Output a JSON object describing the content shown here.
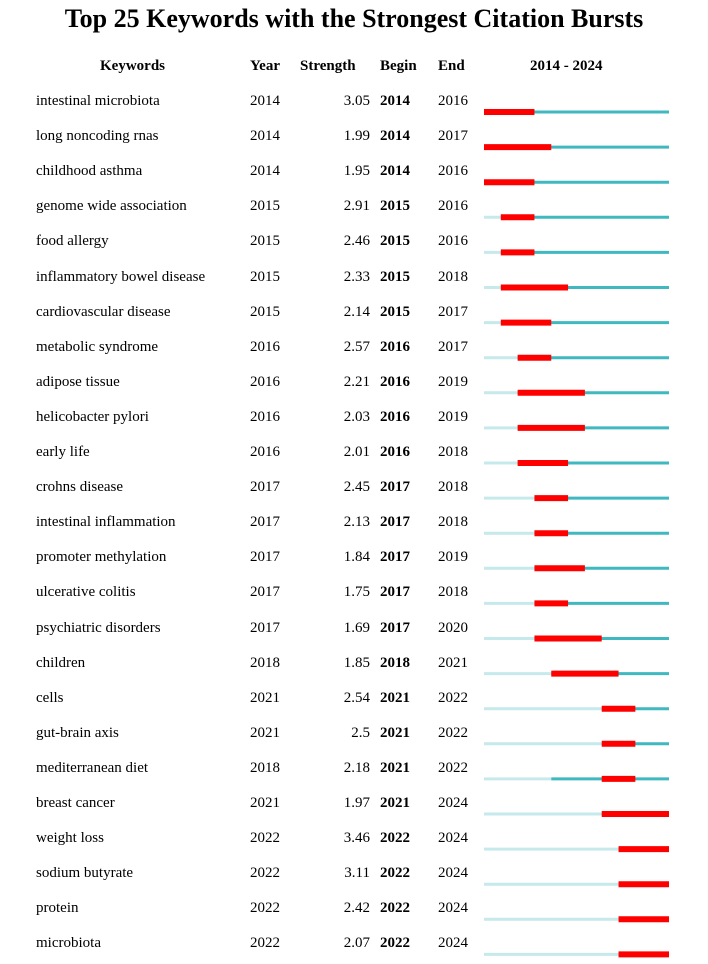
{
  "title": "Top 25 Keywords with the Strongest Citation Bursts",
  "headers": {
    "keywords": "Keywords",
    "year": "Year",
    "strength": "Strength",
    "begin": "Begin",
    "end": "End",
    "range": "2014 - 2024"
  },
  "chart_data": {
    "type": "table",
    "timeline": {
      "start": 2014,
      "end": 2024
    },
    "colors": {
      "burst": "#ff0000",
      "active": "#3fb8c0",
      "inactive": "#c6e9ec"
    },
    "rows": [
      {
        "keyword": "intestinal microbiota",
        "year": 2014,
        "strength": "3.05",
        "begin": 2014,
        "end": 2016
      },
      {
        "keyword": "long noncoding rnas",
        "year": 2014,
        "strength": "1.99",
        "begin": 2014,
        "end": 2017
      },
      {
        "keyword": "childhood asthma",
        "year": 2014,
        "strength": "1.95",
        "begin": 2014,
        "end": 2016
      },
      {
        "keyword": "genome wide association",
        "year": 2015,
        "strength": "2.91",
        "begin": 2015,
        "end": 2016
      },
      {
        "keyword": "food allergy",
        "year": 2015,
        "strength": "2.46",
        "begin": 2015,
        "end": 2016
      },
      {
        "keyword": "inflammatory bowel disease",
        "year": 2015,
        "strength": "2.33",
        "begin": 2015,
        "end": 2018
      },
      {
        "keyword": "cardiovascular disease",
        "year": 2015,
        "strength": "2.14",
        "begin": 2015,
        "end": 2017
      },
      {
        "keyword": "metabolic syndrome",
        "year": 2016,
        "strength": "2.57",
        "begin": 2016,
        "end": 2017
      },
      {
        "keyword": "adipose tissue",
        "year": 2016,
        "strength": "2.21",
        "begin": 2016,
        "end": 2019
      },
      {
        "keyword": "helicobacter pylori",
        "year": 2016,
        "strength": "2.03",
        "begin": 2016,
        "end": 2019
      },
      {
        "keyword": "early life",
        "year": 2016,
        "strength": "2.01",
        "begin": 2016,
        "end": 2018
      },
      {
        "keyword": "crohns disease",
        "year": 2017,
        "strength": "2.45",
        "begin": 2017,
        "end": 2018
      },
      {
        "keyword": "intestinal inflammation",
        "year": 2017,
        "strength": "2.13",
        "begin": 2017,
        "end": 2018
      },
      {
        "keyword": "promoter methylation",
        "year": 2017,
        "strength": "1.84",
        "begin": 2017,
        "end": 2019
      },
      {
        "keyword": "ulcerative colitis",
        "year": 2017,
        "strength": "1.75",
        "begin": 2017,
        "end": 2018
      },
      {
        "keyword": "psychiatric disorders",
        "year": 2017,
        "strength": "1.69",
        "begin": 2017,
        "end": 2020
      },
      {
        "keyword": "children",
        "year": 2018,
        "strength": "1.85",
        "begin": 2018,
        "end": 2021
      },
      {
        "keyword": "cells",
        "year": 2021,
        "strength": "2.54",
        "begin": 2021,
        "end": 2022
      },
      {
        "keyword": "gut-brain axis",
        "year": 2021,
        "strength": "2.5",
        "begin": 2021,
        "end": 2022
      },
      {
        "keyword": "mediterranean diet",
        "year": 2018,
        "strength": "2.18",
        "begin": 2021,
        "end": 2022
      },
      {
        "keyword": "breast cancer",
        "year": 2021,
        "strength": "1.97",
        "begin": 2021,
        "end": 2024
      },
      {
        "keyword": "weight loss",
        "year": 2022,
        "strength": "3.46",
        "begin": 2022,
        "end": 2024
      },
      {
        "keyword": "sodium butyrate",
        "year": 2022,
        "strength": "3.11",
        "begin": 2022,
        "end": 2024
      },
      {
        "keyword": "protein",
        "year": 2022,
        "strength": "2.42",
        "begin": 2022,
        "end": 2024
      },
      {
        "keyword": "microbiota",
        "year": 2022,
        "strength": "2.07",
        "begin": 2022,
        "end": 2024
      }
    ]
  }
}
